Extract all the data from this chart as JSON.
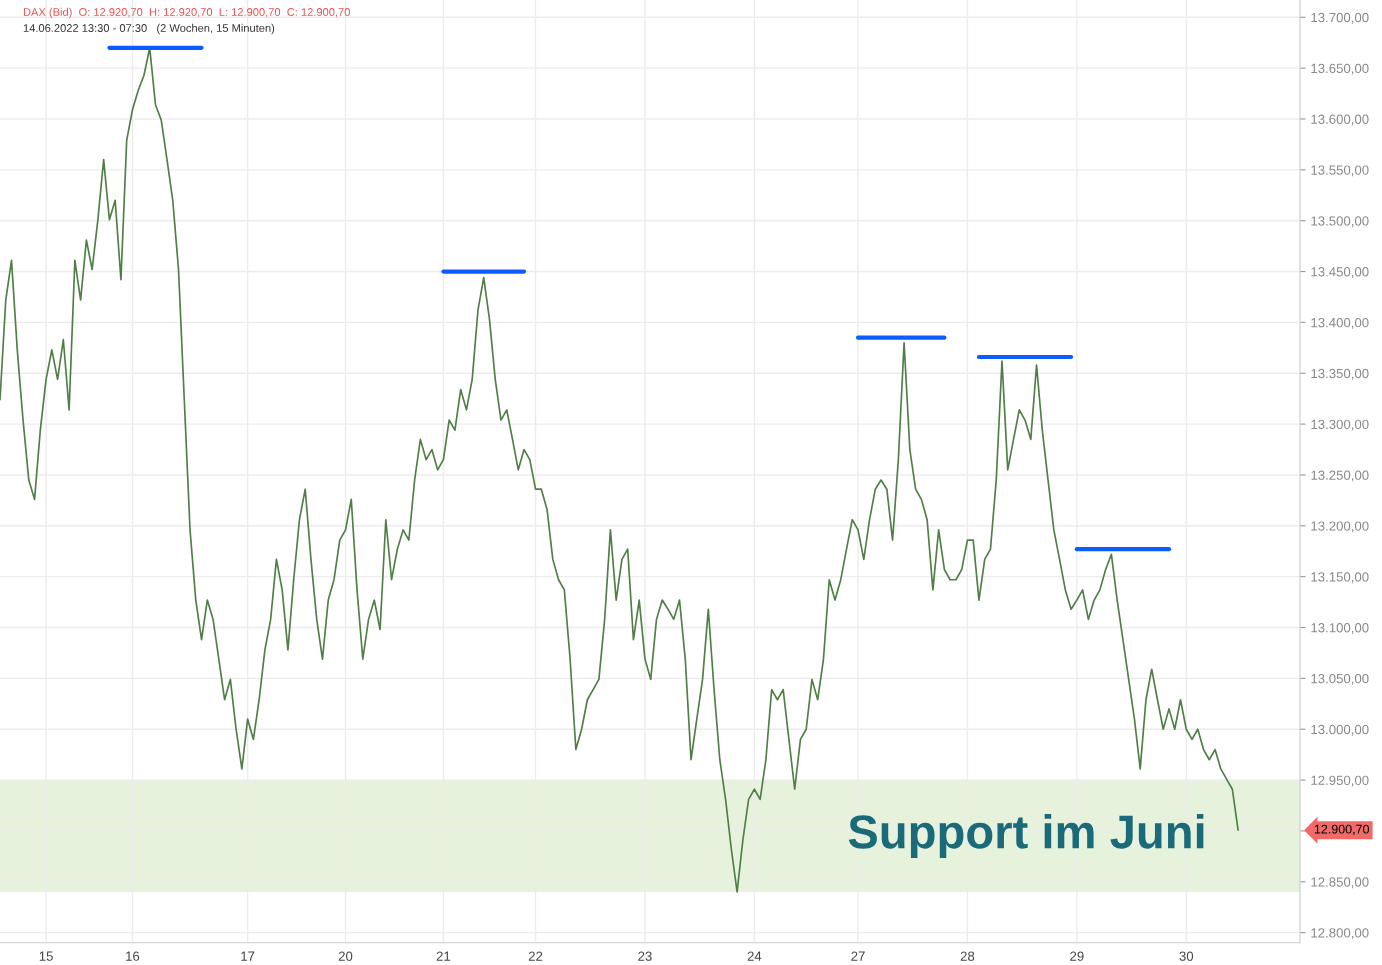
{
  "chart_data": {
    "type": "line",
    "title": "DAX (Bid)  O: 12.920,70  H: 12.920,70  L: 12.900,70  C: 12.900,70",
    "subtitle": "14.06.2022 13:30 - 07:30   (2 Wochen, 15 Minuten)",
    "categories": [
      null,
      null,
      null,
      null,
      null,
      null,
      null,
      null,
      "15",
      null,
      null,
      null,
      null,
      null,
      null,
      null,
      null,
      null,
      null,
      null,
      null,
      null,
      null,
      "16",
      null,
      null,
      null,
      null,
      null,
      null,
      null,
      null,
      null,
      null,
      null,
      null,
      null,
      null,
      null,
      null,
      null,
      null,
      null,
      "17",
      null,
      null,
      null,
      null,
      null,
      null,
      null,
      null,
      null,
      null,
      null,
      null,
      null,
      null,
      null,
      null,
      "20",
      null,
      null,
      null,
      null,
      null,
      null,
      null,
      null,
      null,
      null,
      null,
      null,
      null,
      null,
      null,
      null,
      "21",
      null,
      null,
      null,
      null,
      null,
      null,
      null,
      null,
      null,
      null,
      null,
      null,
      null,
      null,
      null,
      "22",
      null,
      null,
      null,
      null,
      null,
      null,
      null,
      null,
      null,
      null,
      null,
      null,
      null,
      null,
      null,
      null,
      null,
      null,
      "23",
      null,
      null,
      null,
      null,
      null,
      null,
      null,
      null,
      null,
      null,
      null,
      null,
      null,
      null,
      null,
      null,
      null,
      null,
      "24",
      null,
      null,
      null,
      null,
      null,
      null,
      null,
      null,
      null,
      null,
      null,
      null,
      null,
      null,
      null,
      null,
      null,
      "27",
      null,
      null,
      null,
      null,
      null,
      null,
      null,
      null,
      null,
      null,
      null,
      null,
      null,
      null,
      null,
      null,
      null,
      null,
      "28",
      null,
      null,
      null,
      null,
      null,
      null,
      null,
      null,
      null,
      null,
      null,
      null,
      null,
      null,
      null,
      null,
      null,
      null,
      "29",
      null,
      null,
      null,
      null,
      null,
      null,
      null,
      null,
      null,
      null,
      null,
      null,
      null,
      null,
      null,
      null,
      null,
      null,
      "30",
      null,
      null,
      null,
      null,
      null,
      null,
      null,
      null,
      null
    ],
    "series": [
      {
        "color": "#4f7f45",
        "values": [
          13324,
          13422,
          13461,
          13373,
          13304,
          13245,
          13226,
          13294,
          13344,
          13373,
          13344,
          13383,
          13314,
          13461,
          13422,
          13481,
          13452,
          13501,
          13560,
          13501,
          13520,
          13442,
          13579,
          13609,
          13628,
          13643,
          13670,
          13614,
          13599,
          13560,
          13520,
          13452,
          13324,
          13196,
          13127,
          13088,
          13127,
          13108,
          13069,
          13029,
          13049,
          13000,
          12961,
          13010,
          12990,
          13029,
          13078,
          13108,
          13167,
          13137,
          13078,
          13147,
          13206,
          13236,
          13167,
          13108,
          13069,
          13127,
          13147,
          13186,
          13196,
          13226,
          13137,
          13069,
          13108,
          13127,
          13098,
          13206,
          13147,
          13177,
          13196,
          13186,
          13245,
          13285,
          13265,
          13275,
          13255,
          13265,
          13304,
          13294,
          13334,
          13314,
          13344,
          13412,
          13444,
          13403,
          13344,
          13304,
          13314,
          13285,
          13255,
          13275,
          13265,
          13236,
          13236,
          13216,
          13167,
          13147,
          13137,
          13069,
          12980,
          13000,
          13029,
          13039,
          13049,
          13108,
          13196,
          13127,
          13167,
          13177,
          13088,
          13127,
          13069,
          13049,
          13108,
          13127,
          13118,
          13108,
          13127,
          13069,
          12970,
          13010,
          13049,
          13118,
          13039,
          12970,
          12931,
          12882,
          12840,
          12891,
          12931,
          12941,
          12931,
          12970,
          13039,
          13029,
          13039,
          12990,
          12941,
          12990,
          13000,
          13049,
          13029,
          13069,
          13147,
          13127,
          13147,
          13177,
          13206,
          13196,
          13167,
          13206,
          13236,
          13245,
          13236,
          13186,
          13265,
          13380,
          13275,
          13236,
          13226,
          13206,
          13137,
          13196,
          13157,
          13147,
          13147,
          13157,
          13186,
          13186,
          13127,
          13167,
          13177,
          13245,
          13362,
          13255,
          13285,
          13314,
          13304,
          13285,
          13358,
          13294,
          13245,
          13196,
          13167,
          13137,
          13118,
          13127,
          13137,
          13108,
          13127,
          13137,
          13157,
          13172,
          13127,
          13088,
          13049,
          13010,
          12961,
          13029,
          13059,
          13029,
          13000,
          13020,
          13000,
          13029,
          13000,
          12990,
          13000,
          12980,
          12970,
          12980,
          12961,
          12951,
          12941,
          12900.7
        ]
      },
      {
        "color": "#0a5cff",
        "values": [
          null,
          null,
          null,
          null,
          null,
          null,
          null,
          null,
          null,
          null,
          null,
          null,
          null,
          null,
          null,
          null,
          null,
          null,
          null,
          13670,
          13670,
          13670,
          13670,
          13670,
          13670,
          13670,
          13670,
          13670,
          13670,
          13670,
          13670,
          13670,
          13670,
          13670,
          13670,
          13670,
          null,
          null,
          null,
          null,
          null,
          null,
          null,
          null,
          null,
          null,
          null,
          null,
          null,
          null,
          null,
          null,
          null,
          null,
          null,
          null,
          null,
          null,
          null,
          null,
          null,
          null,
          null,
          null,
          null,
          null,
          null,
          null,
          null,
          null,
          null,
          null,
          null,
          null,
          null,
          null,
          null,
          null,
          null,
          null,
          null,
          null,
          null,
          null,
          null,
          null,
          null,
          null,
          null,
          null,
          null,
          null,
          null,
          null,
          null,
          null,
          null,
          null,
          null,
          null,
          null,
          null,
          null,
          null,
          null,
          null,
          null,
          null,
          null,
          null,
          null,
          null,
          null,
          null,
          null,
          null,
          null,
          null,
          null,
          null,
          null,
          null,
          null,
          null,
          null,
          null,
          null,
          null,
          null,
          null,
          null,
          null,
          null,
          null,
          null,
          null,
          null,
          null,
          null,
          null,
          null,
          null,
          null,
          null,
          null,
          null,
          null,
          null,
          null,
          null,
          null,
          null,
          null,
          null,
          null,
          null,
          null,
          null,
          null,
          null,
          null,
          null,
          null,
          null,
          null,
          null,
          null,
          null,
          null,
          null,
          null,
          null,
          null,
          null,
          null,
          null,
          null,
          null,
          null,
          null,
          null,
          null,
          null,
          null,
          null,
          null,
          null,
          null,
          null,
          null,
          null,
          null,
          null,
          null,
          null,
          null,
          null,
          null,
          null,
          null,
          null,
          null,
          null,
          null,
          null,
          null,
          null,
          null,
          null,
          null,
          null,
          null,
          null,
          null,
          null,
          null
        ]
      },
      {
        "color": "#0a5cff",
        "values": [
          null,
          null,
          null,
          null,
          null,
          null,
          null,
          null,
          null,
          null,
          null,
          null,
          null,
          null,
          null,
          null,
          null,
          null,
          null,
          null,
          null,
          null,
          null,
          null,
          null,
          null,
          null,
          null,
          null,
          null,
          null,
          null,
          null,
          null,
          null,
          null,
          null,
          null,
          null,
          null,
          null,
          null,
          null,
          null,
          null,
          null,
          null,
          null,
          null,
          null,
          null,
          null,
          null,
          null,
          null,
          null,
          null,
          null,
          null,
          null,
          null,
          null,
          null,
          null,
          null,
          null,
          null,
          null,
          null,
          null,
          null,
          null,
          null,
          null,
          null,
          null,
          null,
          13450,
          13450,
          13450,
          13450,
          13450,
          13450,
          13450,
          13450,
          13450,
          13450,
          13450,
          13450,
          13450,
          13450,
          13450,
          null,
          null,
          null,
          null,
          null,
          null,
          null,
          null,
          null,
          null,
          null,
          null,
          null,
          null,
          null,
          null,
          null,
          null,
          null,
          null,
          null,
          null,
          null,
          null,
          null,
          null,
          null,
          null,
          null,
          null,
          null,
          null,
          null,
          null,
          null,
          null,
          null,
          null,
          null,
          null,
          null,
          null,
          null,
          null,
          null,
          null,
          null,
          null,
          null,
          null,
          null,
          null,
          null,
          null,
          null,
          null,
          null,
          null,
          null,
          null,
          null,
          null,
          null,
          null,
          null,
          null,
          null,
          null,
          null,
          null,
          null,
          null,
          null,
          null,
          null,
          null,
          null,
          null,
          null,
          null,
          null,
          null,
          null,
          null,
          null,
          null,
          null,
          null,
          null,
          null,
          null,
          null,
          null,
          null,
          null,
          null,
          null,
          null,
          null,
          null,
          null,
          null,
          null,
          null,
          null,
          null,
          null,
          null,
          null,
          null,
          null,
          null,
          null,
          null,
          null,
          null,
          null,
          null,
          null,
          null,
          null,
          null,
          null,
          null
        ]
      },
      {
        "color": "#0a5cff",
        "values": [
          null,
          null,
          null,
          null,
          null,
          null,
          null,
          null,
          null,
          null,
          null,
          null,
          null,
          null,
          null,
          null,
          null,
          null,
          null,
          null,
          null,
          null,
          null,
          null,
          null,
          null,
          null,
          null,
          null,
          null,
          null,
          null,
          null,
          null,
          null,
          null,
          null,
          null,
          null,
          null,
          null,
          null,
          null,
          null,
          null,
          null,
          null,
          null,
          null,
          null,
          null,
          null,
          null,
          null,
          null,
          null,
          null,
          null,
          null,
          null,
          null,
          null,
          null,
          null,
          null,
          null,
          null,
          null,
          null,
          null,
          null,
          null,
          null,
          null,
          null,
          null,
          null,
          null,
          null,
          null,
          null,
          null,
          null,
          null,
          null,
          null,
          null,
          null,
          null,
          null,
          null,
          null,
          null,
          null,
          null,
          null,
          null,
          null,
          null,
          null,
          null,
          null,
          null,
          null,
          null,
          null,
          null,
          null,
          null,
          null,
          null,
          null,
          null,
          null,
          null,
          null,
          null,
          null,
          null,
          null,
          null,
          null,
          null,
          null,
          null,
          null,
          null,
          null,
          null,
          null,
          null,
          null,
          null,
          null,
          null,
          null,
          null,
          null,
          null,
          null,
          null,
          null,
          null,
          null,
          null,
          null,
          null,
          null,
          null,
          13385,
          13385,
          13385,
          13385,
          13385,
          13385,
          13385,
          13385,
          13385,
          13385,
          13385,
          13385,
          13385,
          13385,
          13385,
          13385,
          null,
          null,
          null,
          null,
          null,
          null,
          null,
          null,
          null,
          null,
          null,
          null,
          null,
          null,
          null,
          null,
          null,
          null,
          null,
          null,
          null,
          null,
          null,
          null,
          null,
          null,
          null,
          null,
          null,
          null,
          null,
          null,
          null,
          null,
          null,
          null,
          null,
          null,
          null,
          null,
          null,
          null,
          null,
          null,
          null,
          null,
          null,
          null,
          null,
          null,
          null
        ]
      },
      {
        "color": "#0a5cff",
        "values": [
          null,
          null,
          null,
          null,
          null,
          null,
          null,
          null,
          null,
          null,
          null,
          null,
          null,
          null,
          null,
          null,
          null,
          null,
          null,
          null,
          null,
          null,
          null,
          null,
          null,
          null,
          null,
          null,
          null,
          null,
          null,
          null,
          null,
          null,
          null,
          null,
          null,
          null,
          null,
          null,
          null,
          null,
          null,
          null,
          null,
          null,
          null,
          null,
          null,
          null,
          null,
          null,
          null,
          null,
          null,
          null,
          null,
          null,
          null,
          null,
          null,
          null,
          null,
          null,
          null,
          null,
          null,
          null,
          null,
          null,
          null,
          null,
          null,
          null,
          null,
          null,
          null,
          null,
          null,
          null,
          null,
          null,
          null,
          null,
          null,
          null,
          null,
          null,
          null,
          null,
          null,
          null,
          null,
          null,
          null,
          null,
          null,
          null,
          null,
          null,
          null,
          null,
          null,
          null,
          null,
          null,
          null,
          null,
          null,
          null,
          null,
          null,
          null,
          null,
          null,
          null,
          null,
          null,
          null,
          null,
          null,
          null,
          null,
          null,
          null,
          null,
          null,
          null,
          null,
          null,
          null,
          null,
          null,
          null,
          null,
          null,
          null,
          null,
          null,
          null,
          null,
          null,
          null,
          null,
          null,
          null,
          null,
          null,
          null,
          null,
          null,
          null,
          null,
          null,
          null,
          null,
          null,
          null,
          null,
          null,
          null,
          null,
          null,
          null,
          null,
          null,
          null,
          null,
          null,
          null,
          13366,
          13366,
          13366,
          13366,
          13366,
          13366,
          13366,
          13366,
          13366,
          13366,
          13366,
          13366,
          13366,
          13366,
          13366,
          13366,
          13366,
          null,
          null,
          null,
          null,
          null,
          null,
          null,
          null,
          null,
          null,
          null,
          null,
          null,
          null,
          null,
          null,
          null,
          null,
          null,
          null,
          null,
          null,
          null,
          null,
          null,
          null,
          null,
          null,
          null
        ]
      },
      {
        "color": "#0a5cff",
        "values": [
          null,
          null,
          null,
          null,
          null,
          null,
          null,
          null,
          null,
          null,
          null,
          null,
          null,
          null,
          null,
          null,
          null,
          null,
          null,
          null,
          null,
          null,
          null,
          null,
          null,
          null,
          null,
          null,
          null,
          null,
          null,
          null,
          null,
          null,
          null,
          null,
          null,
          null,
          null,
          null,
          null,
          null,
          null,
          null,
          null,
          null,
          null,
          null,
          null,
          null,
          null,
          null,
          null,
          null,
          null,
          null,
          null,
          null,
          null,
          null,
          null,
          null,
          null,
          null,
          null,
          null,
          null,
          null,
          null,
          null,
          null,
          null,
          null,
          null,
          null,
          null,
          null,
          null,
          null,
          null,
          null,
          null,
          null,
          null,
          null,
          null,
          null,
          null,
          null,
          null,
          null,
          null,
          null,
          null,
          null,
          null,
          null,
          null,
          null,
          null,
          null,
          null,
          null,
          null,
          null,
          null,
          null,
          null,
          null,
          null,
          null,
          null,
          null,
          null,
          null,
          null,
          null,
          null,
          null,
          null,
          null,
          null,
          null,
          null,
          null,
          null,
          null,
          null,
          null,
          null,
          null,
          null,
          null,
          null,
          null,
          null,
          null,
          null,
          null,
          null,
          null,
          null,
          null,
          null,
          null,
          null,
          null,
          null,
          null,
          null,
          null,
          null,
          null,
          null,
          null,
          null,
          null,
          null,
          null,
          null,
          null,
          null,
          null,
          null,
          null,
          null,
          null,
          null,
          null,
          null,
          null,
          null,
          null,
          null,
          null,
          null,
          null,
          null,
          null,
          null,
          null,
          null,
          null,
          null,
          null,
          null,
          null,
          13177,
          13177,
          13177,
          13177,
          13177,
          13177,
          13177,
          13177,
          13177,
          13177,
          13177,
          13177,
          13177,
          13177,
          13177,
          13177,
          13177,
          null,
          null,
          null,
          null,
          null,
          null,
          null,
          null,
          null,
          null,
          null,
          null
        ]
      }
    ],
    "ylim": [
      12790,
      13717
    ],
    "yticks": [
      {
        "value": 12800,
        "label": "12.800,00"
      },
      {
        "value": 12850,
        "label": "12.850,00"
      },
      {
        "value": 12900,
        "label": null
      },
      {
        "value": 12950,
        "label": "12.950,00"
      },
      {
        "value": 13000,
        "label": "13.000,00"
      },
      {
        "value": 13050,
        "label": "13.050,00"
      },
      {
        "value": 13100,
        "label": "13.100,00"
      },
      {
        "value": 13150,
        "label": "13.150,00"
      },
      {
        "value": 13200,
        "label": "13.200,00"
      },
      {
        "value": 13250,
        "label": "13.250,00"
      },
      {
        "value": 13300,
        "label": "13.300,00"
      },
      {
        "value": 13350,
        "label": "13.350,00"
      },
      {
        "value": 13400,
        "label": "13.400,00"
      },
      {
        "value": 13450,
        "label": "13.450,00"
      },
      {
        "value": 13500,
        "label": "13.500,00"
      },
      {
        "value": 13550,
        "label": "13.550,00"
      },
      {
        "value": 13600,
        "label": "13.600,00"
      },
      {
        "value": 13650,
        "label": "13.650,00"
      },
      {
        "value": 13700,
        "label": "13.700,00"
      }
    ],
    "bands": [
      {
        "axis": "y",
        "from": 12840,
        "to": 12950,
        "label": "Support im Juni",
        "color": "#e6f2dc"
      }
    ],
    "annotations": [
      "12.900,70"
    ],
    "grid": true,
    "legend": false,
    "line_style": "solid",
    "marker": "none"
  }
}
